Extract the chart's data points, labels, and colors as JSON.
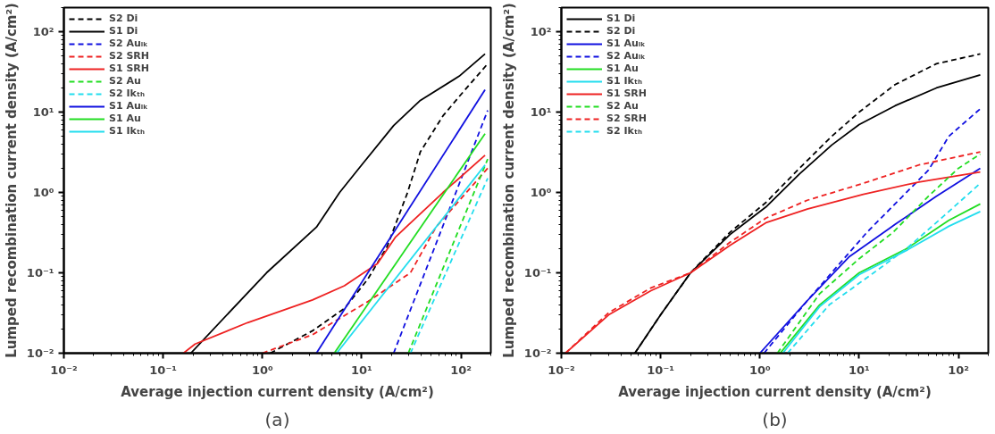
{
  "chart_data": [
    {
      "type": "line",
      "xlabel": "Average injection current density (A/cm²)",
      "ylabel": "Lumped recombination current density (A/cm²)",
      "annotations": [
        "(a)"
      ],
      "log": "xy",
      "grid": false,
      "legend": "top left",
      "xlim": [
        0.01,
        200
      ],
      "ylim": [
        0.01,
        200
      ],
      "xticks": [
        {
          "value": 0.01,
          "label": "10⁻²"
        },
        {
          "value": 0.1,
          "label": "10⁻¹"
        },
        {
          "value": 1,
          "label": "10⁰"
        },
        {
          "value": 10,
          "label": "10¹"
        },
        {
          "value": 100,
          "label": "10²"
        }
      ],
      "yticks": [
        {
          "value": 0.01,
          "label": "10⁻²"
        },
        {
          "value": 0.1,
          "label": "10⁻¹"
        },
        {
          "value": 1,
          "label": "10⁰"
        },
        {
          "value": 10,
          "label": "10¹"
        },
        {
          "value": 100,
          "label": "10²"
        }
      ],
      "series": [
        {
          "name": "S2 Di",
          "color": "#000000",
          "line_style": "dashed",
          "x": [
            1.2,
            3.2,
            6.7,
            11.5,
            18,
            29,
            39,
            66,
            96,
            186
          ],
          "values": [
            0.01,
            0.019,
            0.036,
            0.083,
            0.21,
            1.0,
            3.2,
            9,
            15.6,
            40
          ]
        },
        {
          "name": "S1 Di",
          "color": "#000000",
          "line_style": "solid",
          "x": [
            0.19,
            1.1,
            3.5,
            6,
            10,
            21,
            39,
            96,
            175
          ],
          "values": [
            0.01,
            0.1,
            0.37,
            1.0,
            2.2,
            6.8,
            14,
            28,
            53
          ]
        },
        {
          "name": "S2 Auₗₖ",
          "color": "#1010e0",
          "line_style": "dashed",
          "x": [
            21,
            186
          ],
          "values": [
            0.01,
            10.5
          ]
        },
        {
          "name": "S2 SRH",
          "color": "#ee2222",
          "line_style": "dashed",
          "x": [
            1.0,
            3.2,
            11.6,
            31,
            56,
            186
          ],
          "values": [
            0.01,
            0.017,
            0.044,
            0.1,
            0.37,
            2.0
          ]
        },
        {
          "name": "S1 SRH",
          "color": "#ee2222",
          "line_style": "solid",
          "x": [
            0.16,
            0.21,
            0.71,
            3.2,
            6.7,
            14.4,
            22,
            66,
            175
          ],
          "values": [
            0.01,
            0.013,
            0.024,
            0.046,
            0.069,
            0.13,
            0.28,
            1.0,
            2.9
          ]
        },
        {
          "name": "S2 Au",
          "color": "#22dd22",
          "line_style": "dashed",
          "x": [
            29.5,
            186
          ],
          "values": [
            0.01,
            2.6
          ]
        },
        {
          "name": "S2 Ikₜₕ",
          "color": "#22ddee",
          "line_style": "dashed",
          "x": [
            31,
            186
          ],
          "values": [
            0.01,
            1.5
          ]
        },
        {
          "name": "S1 Auₗₖ",
          "color": "#1010e0",
          "line_style": "solid",
          "x": [
            3.5,
            175
          ],
          "values": [
            0.01,
            19
          ]
        },
        {
          "name": "S1 Au",
          "color": "#22dd22",
          "line_style": "solid",
          "x": [
            5.3,
            175
          ],
          "values": [
            0.01,
            5.4
          ]
        },
        {
          "name": "S1 Ikₜₕ",
          "color": "#22ddee",
          "line_style": "solid",
          "x": [
            5.6,
            175
          ],
          "values": [
            0.01,
            2.2
          ]
        }
      ]
    },
    {
      "type": "line",
      "xlabel": "Average injection current density (A/cm²)",
      "ylabel": "Lumped recombination current density (A/cm²)",
      "annotations": [
        "(b)"
      ],
      "log": "xy",
      "grid": false,
      "legend": "top left",
      "xlim": [
        0.01,
        200
      ],
      "ylim": [
        0.01,
        200
      ],
      "xticks": [
        {
          "value": 0.01,
          "label": "10⁻²"
        },
        {
          "value": 0.1,
          "label": "10⁻¹"
        },
        {
          "value": 1,
          "label": "10⁰"
        },
        {
          "value": 10,
          "label": "10¹"
        },
        {
          "value": 100,
          "label": "10²"
        }
      ],
      "yticks": [
        {
          "value": 0.01,
          "label": "10⁻²"
        },
        {
          "value": 0.1,
          "label": "10⁻¹"
        },
        {
          "value": 1,
          "label": "10⁰"
        },
        {
          "value": 10,
          "label": "10¹"
        },
        {
          "value": 100,
          "label": "10²"
        }
      ],
      "series": [
        {
          "name": "S1 Di",
          "color": "#000000",
          "line_style": "solid",
          "x": [
            0.055,
            0.1,
            0.2,
            0.5,
            1.15,
            2.5,
            5.3,
            10,
            23,
            60,
            166
          ],
          "values": [
            0.01,
            0.03,
            0.1,
            0.3,
            0.66,
            1.7,
            3.9,
            7,
            12,
            20,
            29
          ]
        },
        {
          "name": "S2 Di",
          "color": "#000000",
          "line_style": "dashed",
          "x": [
            0.055,
            0.1,
            0.2,
            0.5,
            1.15,
            2.5,
            5.3,
            10,
            23,
            60,
            166
          ],
          "values": [
            0.01,
            0.03,
            0.1,
            0.32,
            0.75,
            2.0,
            5,
            10,
            22,
            40,
            53
          ]
        },
        {
          "name": "S1 Auₗₖ",
          "color": "#1010e0",
          "line_style": "solid",
          "x": [
            1.0,
            2.9,
            8,
            23,
            60,
            166
          ],
          "values": [
            0.01,
            0.043,
            0.16,
            0.4,
            0.9,
            2.0
          ]
        },
        {
          "name": "S2 Auₗₖ",
          "color": "#1010e0",
          "line_style": "dashed",
          "x": [
            1.1,
            3,
            12,
            25,
            50,
            80,
            166
          ],
          "values": [
            0.01,
            0.045,
            0.32,
            0.8,
            1.9,
            5,
            11
          ]
        },
        {
          "name": "S1 Au",
          "color": "#22dd22",
          "line_style": "solid",
          "x": [
            1.6,
            4,
            10,
            30,
            80,
            166
          ],
          "values": [
            0.01,
            0.04,
            0.1,
            0.2,
            0.45,
            0.72
          ]
        },
        {
          "name": "S1 Ikₜₕ",
          "color": "#22ddee",
          "line_style": "solid",
          "x": [
            1.7,
            4,
            10,
            30,
            80,
            166
          ],
          "values": [
            0.01,
            0.038,
            0.095,
            0.19,
            0.38,
            0.58
          ]
        },
        {
          "name": "S1 SRH",
          "color": "#ee2222",
          "line_style": "solid",
          "x": [
            0.011,
            0.03,
            0.08,
            0.2,
            0.5,
            1.15,
            3,
            11,
            40,
            166
          ],
          "values": [
            0.01,
            0.03,
            0.06,
            0.1,
            0.22,
            0.42,
            0.62,
            0.95,
            1.35,
            1.8
          ]
        },
        {
          "name": "S2 Au",
          "color": "#22dd22",
          "line_style": "dashed",
          "x": [
            1.5,
            4,
            10,
            22,
            50,
            100,
            166
          ],
          "values": [
            0.01,
            0.055,
            0.15,
            0.32,
            0.9,
            2.0,
            3.0
          ]
        },
        {
          "name": "S2 SRH",
          "color": "#ee2222",
          "line_style": "dashed",
          "x": [
            0.011,
            0.03,
            0.08,
            0.2,
            0.5,
            1.15,
            3,
            11,
            40,
            166
          ],
          "values": [
            0.01,
            0.032,
            0.065,
            0.1,
            0.24,
            0.48,
            0.8,
            1.3,
            2.2,
            3.2
          ]
        },
        {
          "name": "S2 Ikₜₕ",
          "color": "#22ddee",
          "line_style": "dashed",
          "x": [
            1.9,
            5,
            14,
            30,
            70,
            166
          ],
          "values": [
            0.01,
            0.04,
            0.1,
            0.2,
            0.5,
            1.3
          ]
        }
      ]
    }
  ]
}
